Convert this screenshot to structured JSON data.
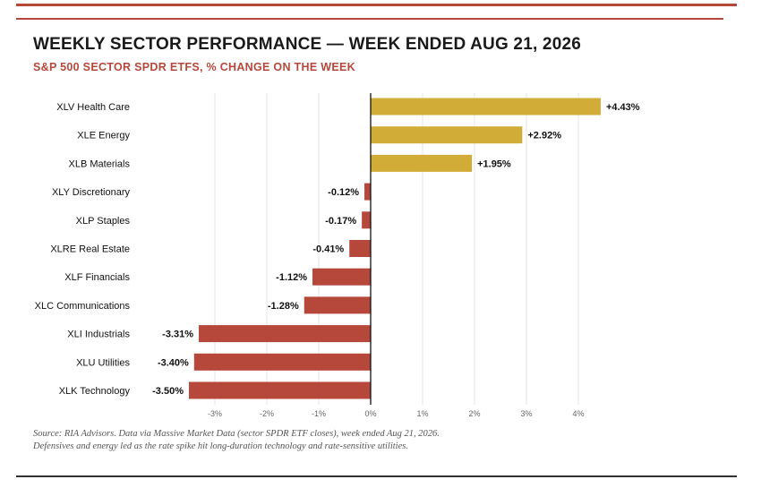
{
  "title": "WEEKLY SECTOR PERFORMANCE — WEEK ENDED AUG 21, 2026",
  "subtitle": "S&P 500 SECTOR SPDR ETFS, % CHANGE ON THE WEEK",
  "source_line1": "Source: RIA Advisors. Data via Massive Market Data (sector SPDR ETF closes), week ended Aug 21, 2026.",
  "source_line2": "Defensives and energy led as the rate spike hit long-duration technology and rate-sensitive utilities.",
  "colors": {
    "positive": "#d1ad37",
    "negative": "#b5483b",
    "accent": "#b5483b"
  },
  "chart_data": {
    "type": "bar",
    "orientation": "horizontal",
    "categories": [
      "XLV Health Care",
      "XLE Energy",
      "XLB Materials",
      "XLY Discretionary",
      "XLP Staples",
      "XLRE Real Estate",
      "XLF Financials",
      "XLC Communications",
      "XLI Industrials",
      "XLU Utilities",
      "XLK Technology"
    ],
    "values": [
      4.43,
      2.92,
      1.95,
      -0.12,
      -0.17,
      -0.41,
      -1.12,
      -1.28,
      -3.31,
      -3.4,
      -3.5
    ],
    "value_labels": [
      "+4.43%",
      "+2.92%",
      "+1.95%",
      "-0.12%",
      "-0.17%",
      "-0.41%",
      "-1.12%",
      "-1.28%",
      "-3.31%",
      "-3.40%",
      "-3.50%"
    ],
    "xlim": [
      -3.5,
      4.5
    ],
    "xticks": [
      -3,
      -2,
      -1,
      0,
      1,
      2,
      3,
      4
    ],
    "xtick_labels": [
      "-3%",
      "-2%",
      "-1%",
      "0%",
      "1%",
      "2%",
      "3%",
      "4%"
    ],
    "grid": true,
    "legend": "none"
  }
}
